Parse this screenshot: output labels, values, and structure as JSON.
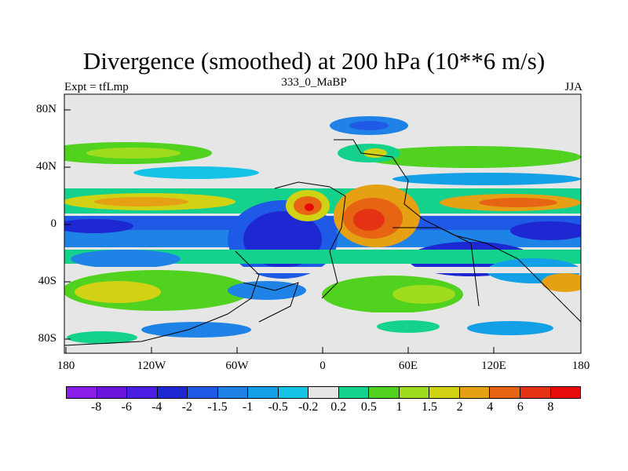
{
  "title": "Divergence (smoothed) at 200 hPa (10**6 m/s)",
  "subtitle_left": "Expt = tfLmp",
  "subtitle_center": "333_0_MaBP",
  "subtitle_right": "JJA",
  "lat_labels": [
    "80N",
    "40N",
    "0",
    "40S",
    "80S"
  ],
  "lon_labels": [
    "180",
    "120W",
    "60W",
    "0",
    "60E",
    "120E",
    "180"
  ],
  "colorbar": {
    "labels": [
      "-8",
      "-6",
      "-4",
      "-2",
      "-1.5",
      "-1",
      "-0.5",
      "-0.2",
      "0.2",
      "0.5",
      "1",
      "1.5",
      "2",
      "4",
      "6",
      "8"
    ],
    "colors": [
      "#8a1ee6",
      "#6a14dc",
      "#4b1ee6",
      "#1e28d2",
      "#1e5ae6",
      "#1e82e6",
      "#14a0e6",
      "#14c3e6",
      "#e6e6e6",
      "#14d28c",
      "#50d21e",
      "#a0dc1e",
      "#d2d214",
      "#e6a014",
      "#e66414",
      "#e63214",
      "#e60a0a"
    ]
  }
}
